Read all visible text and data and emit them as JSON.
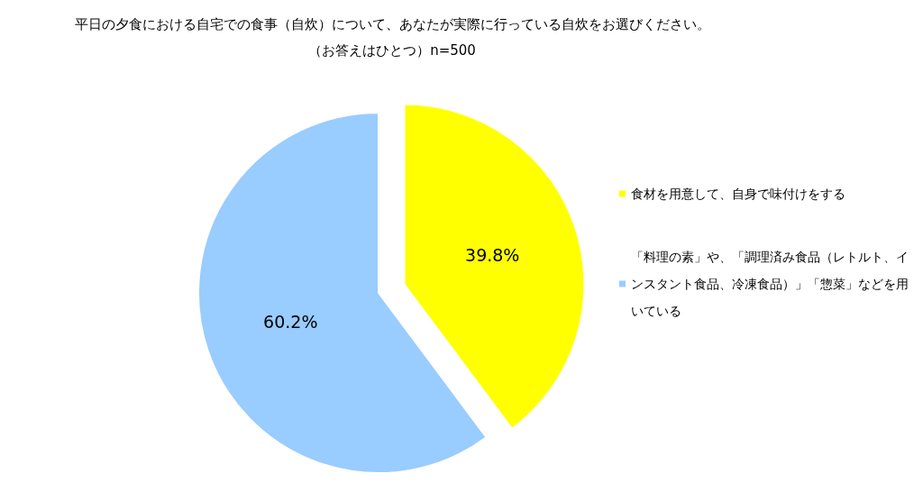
{
  "chart_data": {
    "type": "pie",
    "title": "平日の夕食における自宅での食事（自炊）について、あなたが実際に行っている自炊をお選びください。",
    "subtitle": "（お答えはひとつ）n=500",
    "categories": [
      "食材を用意して、自身で味付けをする",
      "「料理の素」や、「調理済み食品（レトルト、インスタント食品、冷凍食品）」「惣菜」などを用いている"
    ],
    "values": [
      39.8,
      60.2
    ],
    "value_labels": [
      "39.8%",
      "60.2%"
    ],
    "colors": [
      "#ffff00",
      "#99ccff"
    ],
    "legend": "right"
  }
}
